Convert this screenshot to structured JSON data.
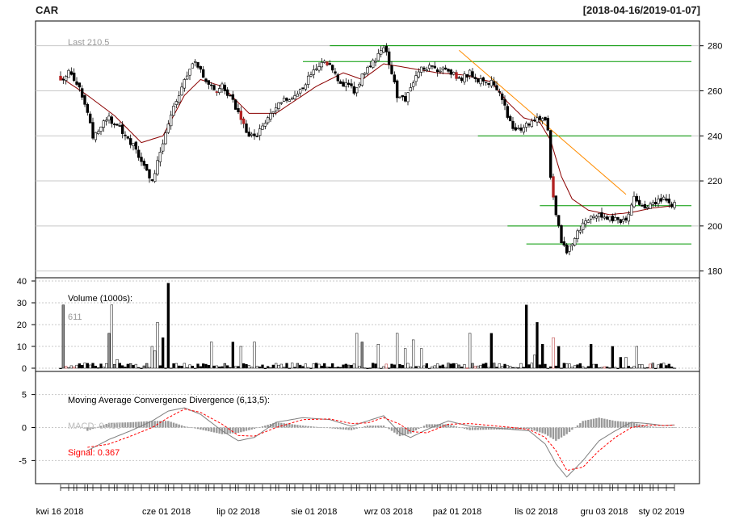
{
  "header": {
    "symbol": "CAR",
    "date_range": "[2018-04-16/2019-01-07]"
  },
  "chart_data": [
    {
      "type": "candlestick",
      "panel": "price",
      "annotation": "Last 210.5",
      "ylim": [
        177,
        291
      ],
      "yticks": [
        180,
        200,
        220,
        240,
        260,
        280
      ],
      "grid": true,
      "x_tick_labels": [
        "kwi 16 2018",
        "cze 01 2018",
        "lip 02 2018",
        "sie 01 2018",
        "wrz 03 2018",
        "paź 01 2018",
        "lis 02 2018",
        "gru 03 2018",
        "sty 02 2019"
      ],
      "close_anchors": [
        [
          0,
          266
        ],
        [
          4,
          268
        ],
        [
          9,
          255
        ],
        [
          12,
          240
        ],
        [
          17,
          248
        ],
        [
          22,
          244
        ],
        [
          27,
          236
        ],
        [
          31,
          226
        ],
        [
          34,
          220
        ],
        [
          38,
          238
        ],
        [
          42,
          252
        ],
        [
          47,
          268
        ],
        [
          50,
          273
        ],
        [
          54,
          265
        ],
        [
          57,
          260
        ],
        [
          60,
          262
        ],
        [
          63,
          258
        ],
        [
          66,
          250
        ],
        [
          69,
          242
        ],
        [
          72,
          239
        ],
        [
          75,
          245
        ],
        [
          79,
          252
        ],
        [
          82,
          255
        ],
        [
          86,
          256
        ],
        [
          90,
          262
        ],
        [
          94,
          268
        ],
        [
          97,
          272
        ],
        [
          100,
          272
        ],
        [
          103,
          266
        ],
        [
          106,
          262
        ],
        [
          109,
          260
        ],
        [
          111,
          264
        ],
        [
          114,
          270
        ],
        [
          117,
          274
        ],
        [
          120,
          280
        ],
        [
          122,
          272
        ],
        [
          125,
          258
        ],
        [
          128,
          255
        ],
        [
          131,
          263
        ],
        [
          134,
          270
        ],
        [
          137,
          270
        ],
        [
          140,
          268
        ],
        [
          143,
          270
        ],
        [
          146,
          268
        ],
        [
          149,
          265
        ],
        [
          152,
          268
        ],
        [
          155,
          265
        ],
        [
          158,
          263
        ],
        [
          161,
          264
        ],
        [
          164,
          256
        ],
        [
          167,
          246
        ],
        [
          170,
          242
        ],
        [
          173,
          245
        ],
        [
          176,
          247
        ],
        [
          179,
          248
        ],
        [
          181,
          243
        ],
        [
          182,
          222
        ],
        [
          184,
          205
        ],
        [
          186,
          193
        ],
        [
          188,
          188
        ],
        [
          190,
          193
        ],
        [
          192,
          198
        ],
        [
          195,
          202
        ],
        [
          198,
          205
        ],
        [
          201,
          204
        ],
        [
          204,
          203
        ],
        [
          207,
          202
        ],
        [
          210,
          203
        ],
        [
          212,
          208
        ],
        [
          213,
          214
        ],
        [
          215,
          210
        ],
        [
          218,
          209
        ],
        [
          221,
          210
        ],
        [
          224,
          212
        ],
        [
          227,
          210
        ],
        [
          228,
          210.5
        ]
      ],
      "moving_average_anchors": [
        [
          0,
          266
        ],
        [
          10,
          258
        ],
        [
          20,
          249
        ],
        [
          30,
          237
        ],
        [
          38,
          240
        ],
        [
          46,
          258
        ],
        [
          52,
          265
        ],
        [
          60,
          262
        ],
        [
          70,
          250
        ],
        [
          80,
          250
        ],
        [
          95,
          262
        ],
        [
          105,
          268
        ],
        [
          112,
          265
        ],
        [
          120,
          272
        ],
        [
          130,
          270
        ],
        [
          140,
          268
        ],
        [
          150,
          267
        ],
        [
          160,
          264
        ],
        [
          166,
          255
        ],
        [
          172,
          248
        ],
        [
          178,
          246
        ],
        [
          182,
          238
        ],
        [
          186,
          222
        ],
        [
          190,
          212
        ],
        [
          196,
          207
        ],
        [
          204,
          205
        ],
        [
          212,
          206
        ],
        [
          220,
          208
        ],
        [
          228,
          209
        ]
      ],
      "support_resistance_lines": [
        {
          "level": 280,
          "from": 100,
          "to": 228
        },
        {
          "level": 273,
          "from": 90,
          "to": 228
        },
        {
          "level": 240,
          "from": 155,
          "to": 228
        },
        {
          "level": 209,
          "from": 178,
          "to": 228
        },
        {
          "level": 200,
          "from": 166,
          "to": 228
        },
        {
          "level": 192,
          "from": 173,
          "to": 228
        }
      ],
      "trend_line": {
        "from": [
          148,
          278
        ],
        "to": [
          210,
          214
        ]
      },
      "colors": {
        "up": "#ffffff",
        "down": "#000000",
        "highlight": "#b22222",
        "ma": "#8b0000",
        "levels": "#009900",
        "trend": "#ff8c00"
      }
    },
    {
      "type": "bar",
      "panel": "volume",
      "title": "Volume (1000s):",
      "annotation": "611",
      "ylim": [
        0,
        40
      ],
      "yticks": [
        0,
        10,
        20,
        30,
        40
      ],
      "grid": true,
      "spikes": [
        [
          1,
          29
        ],
        [
          19,
          29
        ],
        [
          18,
          16
        ],
        [
          40,
          39
        ],
        [
          36,
          21
        ],
        [
          21,
          4
        ],
        [
          35,
          8
        ],
        [
          34,
          10
        ],
        [
          38,
          14
        ],
        [
          64,
          12
        ],
        [
          67,
          10
        ],
        [
          56,
          12
        ],
        [
          72,
          12
        ],
        [
          110,
          16
        ],
        [
          112,
          12
        ],
        [
          118,
          11
        ],
        [
          125,
          16
        ],
        [
          128,
          9
        ],
        [
          131,
          13
        ],
        [
          134,
          9
        ],
        [
          152,
          16
        ],
        [
          160,
          16
        ],
        [
          173,
          29
        ],
        [
          177,
          21
        ],
        [
          176,
          6
        ],
        [
          179,
          11
        ],
        [
          183,
          14
        ],
        [
          185,
          10
        ],
        [
          197,
          11
        ],
        [
          205,
          10
        ],
        [
          208,
          5
        ],
        [
          210,
          5
        ],
        [
          214,
          10
        ]
      ]
    },
    {
      "type": "line",
      "panel": "macd",
      "title": "Moving Average Convergence Divergence (6,13,5):",
      "macd_label": "MACD: 0.400",
      "signal_label": "Signal: 0.367",
      "ylim": [
        -8.5,
        8.5
      ],
      "yticks": [
        -5,
        0,
        5
      ],
      "grid": true,
      "macd_anchors": [
        [
          10,
          -3.5
        ],
        [
          18,
          -1.8
        ],
        [
          26,
          -0.5
        ],
        [
          34,
          1.0
        ],
        [
          40,
          2.5
        ],
        [
          46,
          3.0
        ],
        [
          52,
          2.0
        ],
        [
          60,
          -0.5
        ],
        [
          66,
          -2.0
        ],
        [
          72,
          -1.5
        ],
        [
          80,
          0.8
        ],
        [
          90,
          1.5
        ],
        [
          100,
          1.2
        ],
        [
          108,
          0.2
        ],
        [
          114,
          1.0
        ],
        [
          120,
          1.8
        ],
        [
          126,
          -0.8
        ],
        [
          130,
          -1.5
        ],
        [
          136,
          -0.3
        ],
        [
          144,
          1.0
        ],
        [
          152,
          0.2
        ],
        [
          160,
          0.0
        ],
        [
          168,
          -0.3
        ],
        [
          174,
          -0.5
        ],
        [
          180,
          -2.5
        ],
        [
          184,
          -5.5
        ],
        [
          188,
          -7.5
        ],
        [
          194,
          -5.0
        ],
        [
          200,
          -2.0
        ],
        [
          206,
          -0.5
        ],
        [
          212,
          0.8
        ],
        [
          218,
          0.6
        ],
        [
          224,
          0.3
        ],
        [
          228,
          0.4
        ]
      ],
      "signal_anchors": [
        [
          10,
          -3.0
        ],
        [
          18,
          -2.5
        ],
        [
          26,
          -1.3
        ],
        [
          34,
          0.0
        ],
        [
          40,
          1.5
        ],
        [
          46,
          2.8
        ],
        [
          52,
          2.3
        ],
        [
          60,
          0.5
        ],
        [
          66,
          -1.2
        ],
        [
          72,
          -1.3
        ],
        [
          80,
          0.0
        ],
        [
          90,
          1.2
        ],
        [
          100,
          1.3
        ],
        [
          108,
          0.6
        ],
        [
          114,
          0.7
        ],
        [
          120,
          1.5
        ],
        [
          126,
          0.5
        ],
        [
          130,
          -0.6
        ],
        [
          136,
          -0.8
        ],
        [
          144,
          0.5
        ],
        [
          152,
          0.6
        ],
        [
          160,
          0.3
        ],
        [
          168,
          0.0
        ],
        [
          174,
          -0.3
        ],
        [
          180,
          -1.5
        ],
        [
          184,
          -3.5
        ],
        [
          188,
          -6.5
        ],
        [
          194,
          -6.0
        ],
        [
          200,
          -3.5
        ],
        [
          206,
          -1.5
        ],
        [
          212,
          0.0
        ],
        [
          218,
          0.4
        ],
        [
          224,
          0.3
        ],
        [
          228,
          0.367
        ]
      ],
      "colors": {
        "macd": "#808080",
        "signal": "#ff0000",
        "hist": "#999999"
      }
    }
  ]
}
